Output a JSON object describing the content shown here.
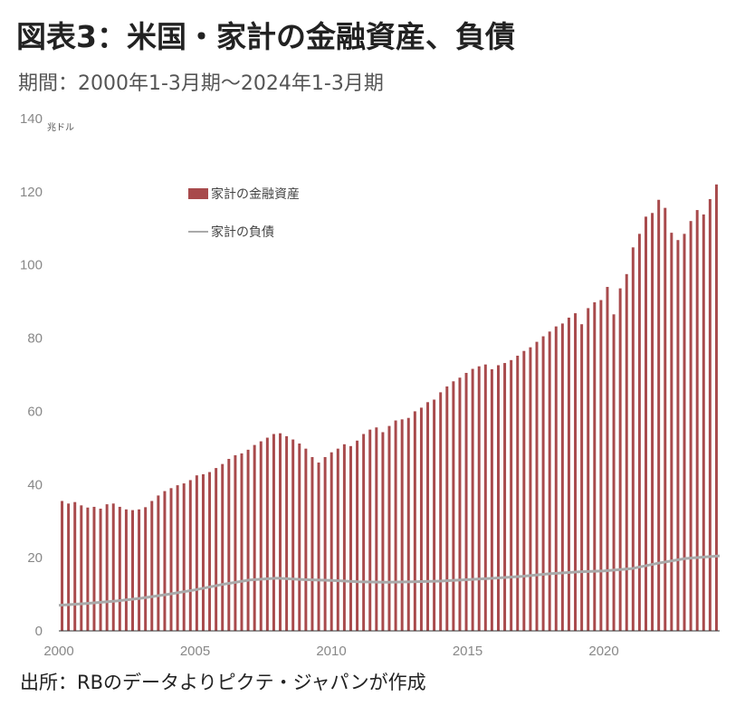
{
  "title": "図表3：米国・家計の金融資産、負債",
  "subtitle": "期間：2000年1-3月期〜2024年1-3月期",
  "source": "出所：RBのデータよりピクテ・ジャパンが作成",
  "colors": {
    "assets": "#a84a4c",
    "liabilities": "#aaaaaa",
    "axis": "#333333"
  },
  "chart_data": {
    "type": "bar",
    "unit_label": "兆ドル",
    "ylim": [
      0,
      140
    ],
    "yticks": [
      0,
      20,
      40,
      60,
      80,
      100,
      120,
      140
    ],
    "xlim": [
      2000,
      2024.25
    ],
    "xticks": [
      "2000",
      "2005",
      "2010",
      "2015",
      "2020"
    ],
    "grid": false,
    "legend_position": "top-left",
    "series": [
      {
        "name": "家計の金融資産",
        "kind": "bar",
        "start": "2000 Q1",
        "frequency": "quarterly",
        "values": [
          35.5,
          34.8,
          35.2,
          34.3,
          33.7,
          33.9,
          33.4,
          34.6,
          34.8,
          33.9,
          33.2,
          33.0,
          33.2,
          33.8,
          35.5,
          37.0,
          38.2,
          39.0,
          39.8,
          40.3,
          41.2,
          42.5,
          42.8,
          43.4,
          44.5,
          45.6,
          47.0,
          48.0,
          48.5,
          49.5,
          50.8,
          51.8,
          52.8,
          53.8,
          54.0,
          53.2,
          52.3,
          51.2,
          49.8,
          47.5,
          46.0,
          47.5,
          48.8,
          49.8,
          51.0,
          50.5,
          52.0,
          53.8,
          55.0,
          55.6,
          54.3,
          56.0,
          57.5,
          57.8,
          58.2,
          60.0,
          61.0,
          62.5,
          63.2,
          65.2,
          66.8,
          68.2,
          69.2,
          70.5,
          71.6,
          72.3,
          72.8,
          71.5,
          72.6,
          73.2,
          74.0,
          75.2,
          76.5,
          77.5,
          79.0,
          80.5,
          81.8,
          83.2,
          84.0,
          85.6,
          86.8,
          83.8,
          88.2,
          89.8,
          90.4,
          94.0,
          86.5,
          93.6,
          97.5,
          104.8,
          108.5,
          113.2,
          114.2,
          117.8,
          115.6,
          108.8,
          106.8,
          108.5,
          112.0,
          115.0,
          113.8,
          118.0,
          122.0
        ]
      },
      {
        "name": "家計の負債",
        "kind": "line",
        "points": [
          [
            2000,
            7.0
          ],
          [
            2001,
            7.5
          ],
          [
            2002,
            8.1
          ],
          [
            2003,
            8.9
          ],
          [
            2004,
            10.0
          ],
          [
            2005,
            11.2
          ],
          [
            2006,
            12.7
          ],
          [
            2007,
            13.9
          ],
          [
            2008,
            14.4
          ],
          [
            2009,
            14.0
          ],
          [
            2010,
            13.8
          ],
          [
            2011,
            13.4
          ],
          [
            2012,
            13.3
          ],
          [
            2013,
            13.4
          ],
          [
            2014,
            13.6
          ],
          [
            2015,
            14.0
          ],
          [
            2016,
            14.4
          ],
          [
            2017,
            14.9
          ],
          [
            2018,
            15.6
          ],
          [
            2019,
            16.1
          ],
          [
            2020,
            16.4
          ],
          [
            2021,
            17.0
          ],
          [
            2022,
            18.5
          ],
          [
            2023,
            19.8
          ],
          [
            2024.25,
            20.5
          ]
        ]
      }
    ]
  }
}
